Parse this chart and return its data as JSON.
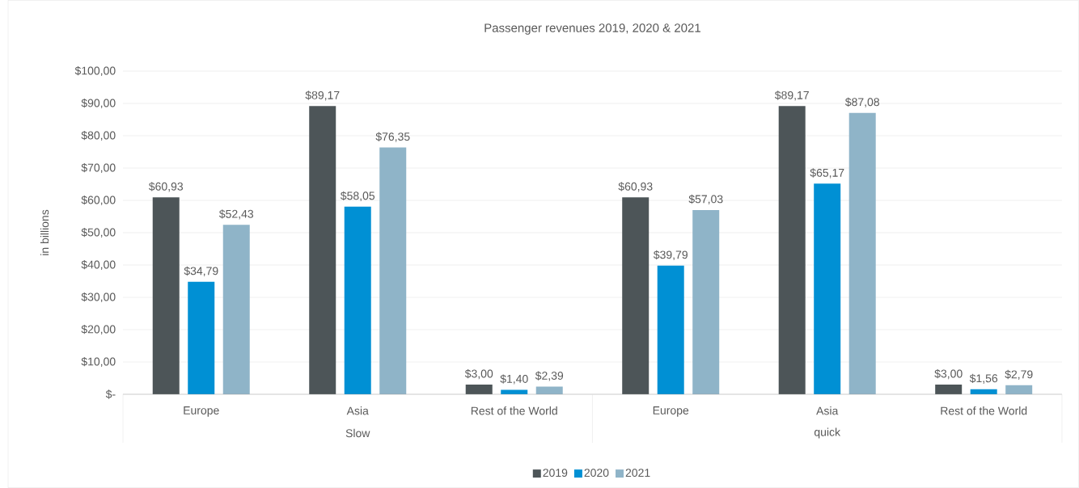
{
  "chart_data": {
    "type": "bar",
    "title": "Passenger revenues 2019, 2020 & 2021",
    "ylabel": "in billions",
    "categories": [
      "Europe",
      "Asia",
      "Rest of the World",
      "Europe",
      "Asia",
      "Rest of the World"
    ],
    "annotations": [
      "Slow",
      "quick"
    ],
    "series": [
      {
        "name": "2019",
        "color": "#4d5558",
        "values": [
          60.93,
          89.17,
          3.0,
          60.93,
          89.17,
          3.0
        ],
        "value_labels": [
          "$60,93",
          "$89,17",
          "$3,00",
          "$60,93",
          "$89,17",
          "$3,00"
        ]
      },
      {
        "name": "2020",
        "color": "#0090d4",
        "values": [
          34.79,
          58.05,
          1.4,
          39.79,
          65.17,
          1.56
        ],
        "value_labels": [
          "$34,79",
          "$58,05",
          "$1,40",
          "$39,79",
          "$65,17",
          "$1,56"
        ]
      },
      {
        "name": "2021",
        "color": "#8fb4c8",
        "values": [
          52.43,
          76.35,
          2.39,
          57.03,
          87.08,
          2.79
        ],
        "value_labels": [
          "$52,43",
          "$76,35",
          "$2,39",
          "$57,03",
          "$87,08",
          "$2,79"
        ]
      }
    ],
    "ylim": [
      0,
      100
    ],
    "yticks": [
      {
        "value": 0,
        "label": "$-"
      },
      {
        "value": 10,
        "label": "$10,00"
      },
      {
        "value": 20,
        "label": "$20,00"
      },
      {
        "value": 30,
        "label": "$30,00"
      },
      {
        "value": 40,
        "label": "$40,00"
      },
      {
        "value": 50,
        "label": "$50,00"
      },
      {
        "value": 60,
        "label": "$60,00"
      },
      {
        "value": 70,
        "label": "$70,00"
      },
      {
        "value": 80,
        "label": "$80,00"
      },
      {
        "value": 90,
        "label": "$90,00"
      },
      {
        "value": 100,
        "label": "$100,00"
      }
    ],
    "grid": true,
    "legend": "bottom"
  }
}
